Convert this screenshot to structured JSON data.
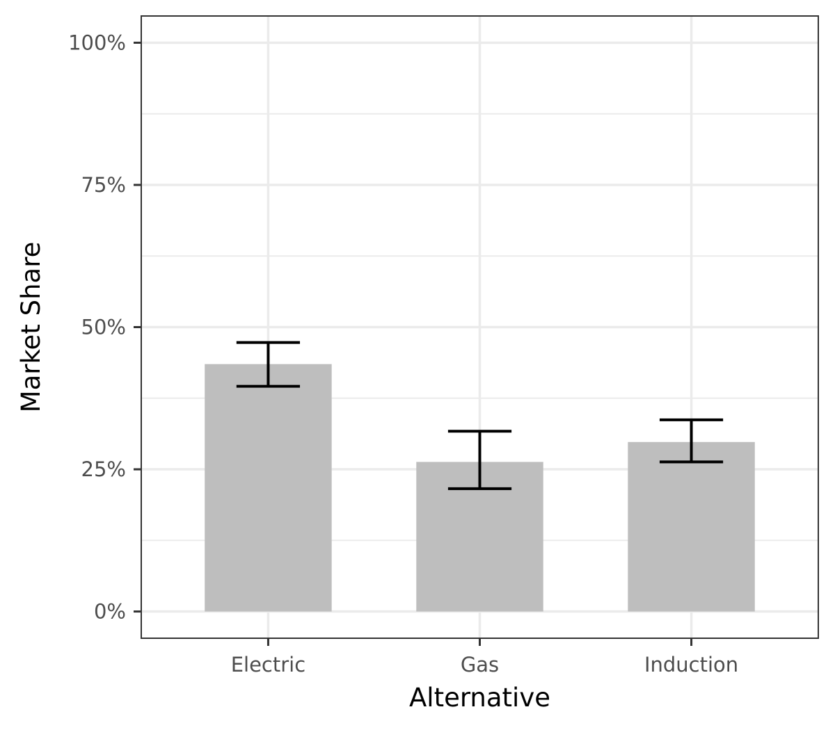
{
  "chart_data": {
    "type": "bar",
    "title": "",
    "xlabel": "Alternative",
    "ylabel": "Market Share",
    "categories": [
      "Electric",
      "Gas",
      "Induction"
    ],
    "values": [
      0.435,
      0.263,
      0.298
    ],
    "error_low": [
      0.396,
      0.216,
      0.263
    ],
    "error_high": [
      0.473,
      0.317,
      0.337
    ],
    "ylim": [
      -0.047,
      1.047
    ],
    "yticks": [
      0,
      0.25,
      0.5,
      0.75,
      1.0
    ],
    "ytick_labels": [
      "0%",
      "25%",
      "50%",
      "75%",
      "100%"
    ],
    "grid": true,
    "legend": "none",
    "colors": {
      "bar": "#bebebe",
      "errorbar": "#000000",
      "grid": "#ebebeb",
      "panel_border": "#333333"
    }
  }
}
